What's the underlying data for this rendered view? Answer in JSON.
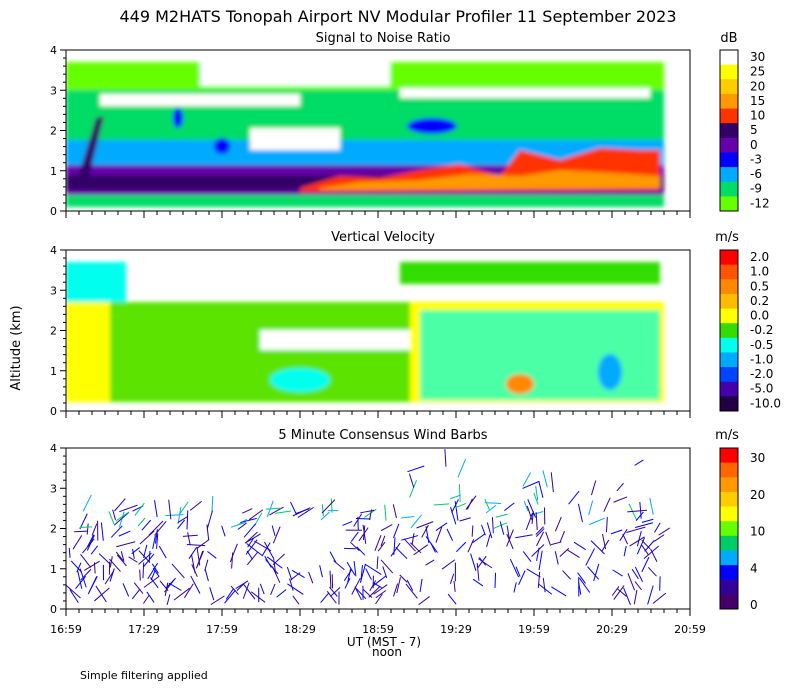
{
  "title": "449 M2HATS Tonopah Airport NV Modular Profiler 11 September 2023",
  "ylabel": "Altitude (km)",
  "footer": "Simple filtering applied",
  "xaxis": {
    "ticks": [
      "16:59",
      "17:29",
      "17:59",
      "18:29",
      "18:59",
      "19:29",
      "19:59",
      "20:29",
      "20:59"
    ],
    "label": "UT  (MST - 7)",
    "sublabel": "noon",
    "range_minutes": [
      0,
      240
    ]
  },
  "chart_data": [
    {
      "type": "heatmap",
      "title": "Signal to Noise Ratio",
      "ylabel": "Altitude (km)",
      "ylim": [
        0,
        4
      ],
      "yticks": [
        "0",
        "1",
        "2",
        "3",
        "4"
      ],
      "colorbar_unit": "dB",
      "colorbar_labels": [
        "30",
        "25",
        "20",
        "15",
        "10",
        "5",
        "0",
        "-3",
        "-6",
        "-9",
        "-12"
      ],
      "colorbar_colors": [
        "#ffffff",
        "#ffff00",
        "#ffcc00",
        "#ff9900",
        "#ff3300",
        "#330066",
        "#6600aa",
        "#0000ff",
        "#00aaff",
        "#00dd66",
        "#66ff00"
      ],
      "bands": [
        {
          "alt_range": [
            0.1,
            0.45
          ],
          "value": "-9"
        },
        {
          "alt_range": [
            0.45,
            0.85
          ],
          "value": "5"
        },
        {
          "alt_range": [
            0.85,
            1.6
          ],
          "value": "-3"
        },
        {
          "alt_range": [
            1.6,
            2.6
          ],
          "value": "-9"
        },
        {
          "alt_range": [
            2.6,
            3.4
          ],
          "value": "-12"
        }
      ]
    },
    {
      "type": "heatmap",
      "title": "Vertical Velocity",
      "ylabel": "Altitude (km)",
      "ylim": [
        0,
        4
      ],
      "yticks": [
        "0",
        "1",
        "2",
        "3",
        "4"
      ],
      "colorbar_unit": "m/s",
      "colorbar_labels": [
        "2.0",
        "1.0",
        "0.5",
        "0.2",
        "0.0",
        "-0.2",
        "-0.5",
        "-1.0",
        "-2.0",
        "-5.0",
        "-10.0"
      ],
      "colorbar_colors": [
        "#ff0000",
        "#ff5500",
        "#ff8800",
        "#ffbb00",
        "#ffff00",
        "#33dd00",
        "#00ffee",
        "#00aaff",
        "#0044ff",
        "#4400aa",
        "#220044"
      ],
      "bands": [
        {
          "alt_range": [
            0.2,
            2.7
          ],
          "value": "0.0"
        },
        {
          "alt_range": [
            3.0,
            3.7
          ],
          "value": "0.0"
        }
      ]
    },
    {
      "type": "scatter",
      "title": "5 Minute Consensus Wind Barbs",
      "ylabel": "Altitude (km)",
      "ylim": [
        0,
        4
      ],
      "yticks": [
        "0",
        "1",
        "2",
        "3",
        "4"
      ],
      "colorbar_unit": "m/s",
      "colorbar_labels": [
        "30",
        "20",
        "10",
        "4",
        "0"
      ],
      "colorbar_colors": [
        "#ff0000",
        "#ff6600",
        "#ff9900",
        "#ffcc00",
        "#ffff00",
        "#66ff00",
        "#00cc66",
        "#00aaff",
        "#0000ff",
        "#330099",
        "#440066"
      ],
      "speed_range_ms": [
        0,
        30
      ]
    }
  ]
}
